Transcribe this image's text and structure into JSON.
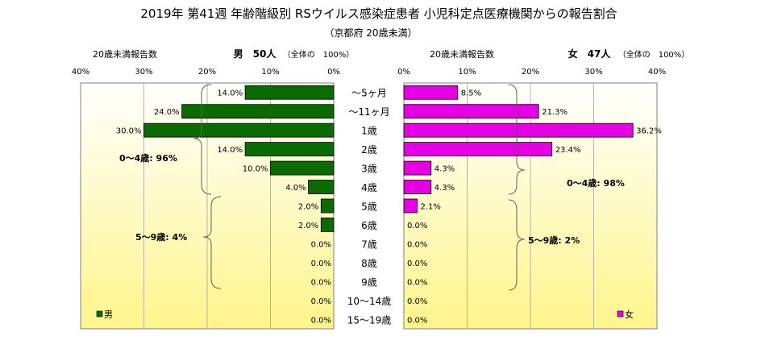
{
  "title": "2019年 第41週 年齢階級別 RSウイルス感染症患者 小児科定点医療機関からの報告割合",
  "subtitle": "（京都府 20歳未満）",
  "male_header": {
    "left": "20歳未満報告数",
    "mid": "男　50人",
    "right": "（全体の　100%）"
  },
  "female_header": {
    "left": "20歳未満報告数",
    "mid": "女　47人",
    "right": "（全体の　100%）"
  },
  "annotations": {
    "male_0_4": "0～4歳: 96%",
    "male_5_9": "5～9歳: 4%",
    "female_0_4": "0～4歳: 98%",
    "female_5_9": "5～9歳: 2%"
  },
  "colors": {
    "male": "#0a6b00",
    "female": "#e600e6",
    "plot_top": "#ffffff",
    "plot_bottom": "#fff58a"
  },
  "chart_data": {
    "type": "bar",
    "orientation": "horizontal-butterfly",
    "categories": [
      "～5ヶ月",
      "～11ヶ月",
      "1歳",
      "2歳",
      "3歳",
      "4歳",
      "5歳",
      "6歳",
      "7歳",
      "8歳",
      "9歳",
      "10～14歳",
      "15～19歳"
    ],
    "series": [
      {
        "name": "男",
        "values": [
          14.0,
          24.0,
          30.0,
          14.0,
          10.0,
          4.0,
          2.0,
          2.0,
          0.0,
          0.0,
          0.0,
          0.0,
          0.0
        ],
        "labels": [
          "14.0%",
          "24.0%",
          "30.0%",
          "14.0%",
          "10.0%",
          "4.0%",
          "2.0%",
          "2.0%",
          "0.0%",
          "0.0%",
          "0.0%",
          "0.0%",
          "0.0%"
        ]
      },
      {
        "name": "女",
        "values": [
          8.5,
          21.3,
          36.2,
          23.4,
          4.3,
          4.3,
          2.1,
          0.0,
          0.0,
          0.0,
          0.0,
          0.0,
          0.0
        ],
        "labels": [
          "8.5%",
          "21.3%",
          "36.2%",
          "23.4%",
          "4.3%",
          "4.3%",
          "2.1%",
          "0.0%",
          "0.0%",
          "0.0%",
          "0.0%",
          "0.0%",
          "0.0%"
        ]
      }
    ],
    "male_ticks": [
      "40%",
      "30%",
      "20%",
      "10%",
      "0%"
    ],
    "female_ticks": [
      "0%",
      "10%",
      "20%",
      "30%",
      "40%"
    ],
    "xlim": [
      0,
      40
    ],
    "grid": true,
    "legend": "bottom-corners"
  }
}
